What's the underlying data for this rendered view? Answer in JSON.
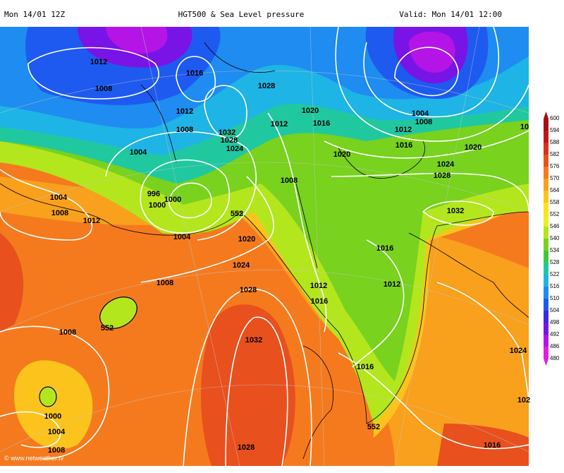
{
  "header": {
    "left": "Mon 14/01 12Z",
    "center": "HGT500 & Sea Level pressure",
    "right": "Valid: Mon 14/01 12:00"
  },
  "watermark": "© www.netweather.tv",
  "legend": {
    "labels": [
      600,
      594,
      588,
      582,
      576,
      570,
      564,
      558,
      552,
      546,
      540,
      534,
      528,
      522,
      516,
      510,
      504,
      498,
      492,
      486,
      480
    ],
    "colors": [
      "#a50f15",
      "#c0171d",
      "#d7301f",
      "#e8501e",
      "#f57a1e",
      "#f9a01c",
      "#fbc31c",
      "#fde31e",
      "#e8f020",
      "#b4e61e",
      "#78d21e",
      "#3cc83c",
      "#20c8a0",
      "#1eb4e6",
      "#1e8cf0",
      "#1e5af0",
      "#3c28e6",
      "#7814e6",
      "#b414e6",
      "#e01ee0"
    ]
  },
  "isobar_labels": [
    "1012",
    "1016",
    "1008",
    "1028",
    "1012",
    "1008",
    "1032",
    "1028",
    "1024",
    "1020",
    "1016",
    "1012",
    "1004",
    "1008",
    "1012",
    "1016",
    "1020",
    "1024",
    "1028",
    "1020",
    "1004",
    "996",
    "1000",
    "1000",
    "1008",
    "1004",
    "1008",
    "1012",
    "552",
    "1004",
    "1020",
    "1032",
    "1024",
    "1016",
    "1008",
    "1028",
    "1012",
    "1012",
    "1016",
    "552",
    "1008",
    "1032",
    "1016",
    "1024",
    "1000",
    "1004",
    "552",
    "1008",
    "1028",
    "1016",
    "102",
    "10"
  ]
}
